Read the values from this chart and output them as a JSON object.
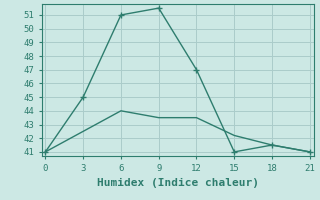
{
  "xlabel": "Humidex (Indice chaleur)",
  "line1_x": [
    0,
    3,
    6,
    9,
    12,
    15,
    18,
    21
  ],
  "line1_y": [
    41,
    45,
    51,
    51.5,
    47,
    41,
    41.5,
    41
  ],
  "line2_x": [
    0,
    3,
    6,
    9,
    12,
    15,
    18,
    21
  ],
  "line2_y": [
    41,
    42.5,
    44,
    43.5,
    43.5,
    42.2,
    41.5,
    41
  ],
  "line_color": "#2e7d6e",
  "bg_color": "#cce8e4",
  "grid_color": "#aaccca",
  "xlim": [
    -0.3,
    21.3
  ],
  "ylim": [
    40.7,
    51.8
  ],
  "xticks": [
    0,
    3,
    6,
    9,
    12,
    15,
    18,
    21
  ],
  "yticks": [
    41,
    42,
    43,
    44,
    45,
    46,
    47,
    48,
    49,
    50,
    51
  ],
  "tick_fontsize": 6.5,
  "xlabel_fontsize": 8
}
